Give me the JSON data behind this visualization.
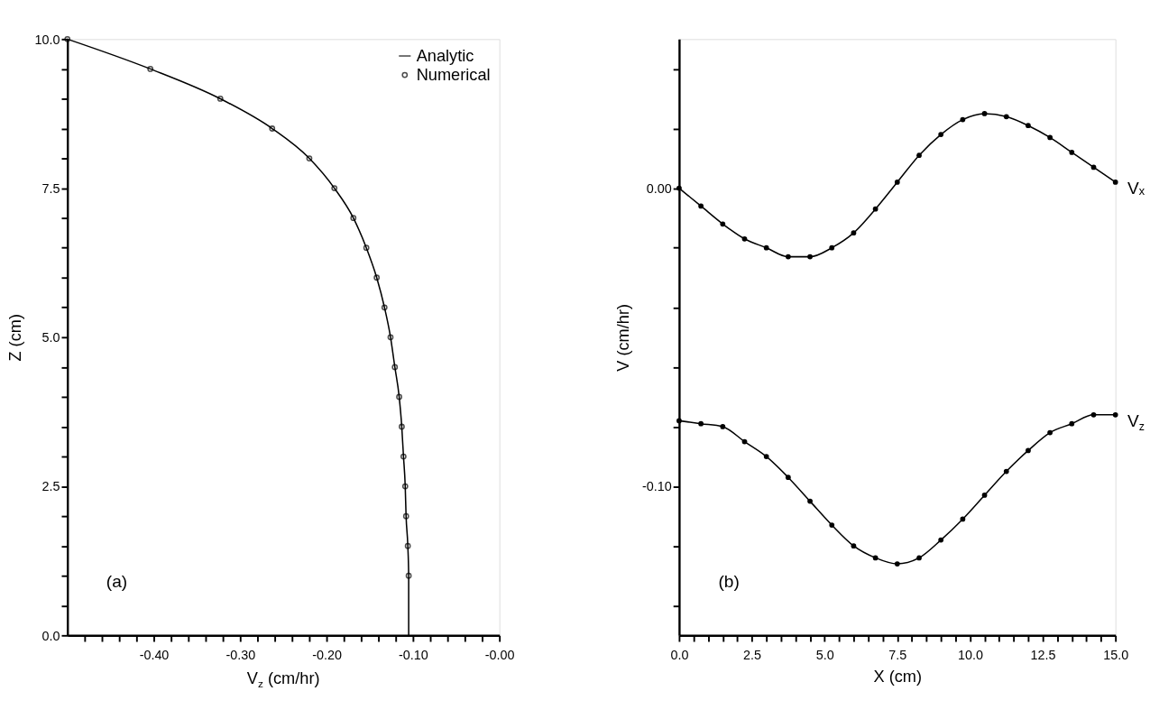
{
  "chart_data": [
    {
      "type": "line",
      "xlabel": "V$_{z}$ (cm/hr)",
      "ylabel": "Z (cm)",
      "xlim": [
        -0.5,
        0.0
      ],
      "ylim": [
        0,
        10
      ],
      "xticks": [
        {
          "value": -0.48,
          "label": null
        },
        {
          "value": -0.46,
          "label": null
        },
        {
          "value": -0.44,
          "label": null
        },
        {
          "value": -0.42,
          "label": null
        },
        {
          "value": -0.4,
          "label": "-0.40"
        },
        {
          "value": -0.38,
          "label": null
        },
        {
          "value": -0.36,
          "label": null
        },
        {
          "value": -0.34,
          "label": null
        },
        {
          "value": -0.32,
          "label": null
        },
        {
          "value": -0.3,
          "label": "-0.30"
        },
        {
          "value": -0.28,
          "label": null
        },
        {
          "value": -0.26,
          "label": null
        },
        {
          "value": -0.24,
          "label": null
        },
        {
          "value": -0.22,
          "label": null
        },
        {
          "value": -0.2,
          "label": "-0.20"
        },
        {
          "value": -0.18,
          "label": null
        },
        {
          "value": -0.16,
          "label": null
        },
        {
          "value": -0.14,
          "label": null
        },
        {
          "value": -0.12,
          "label": null
        },
        {
          "value": -0.1,
          "label": "-0.10"
        },
        {
          "value": -0.08,
          "label": null
        },
        {
          "value": -0.06,
          "label": null
        },
        {
          "value": -0.04,
          "label": null
        },
        {
          "value": -0.02,
          "label": null
        },
        {
          "value": 0.0,
          "label": "-0.00"
        }
      ],
      "yticks": [
        {
          "value": 0,
          "label": "0.0"
        },
        {
          "value": 0.5,
          "label": null
        },
        {
          "value": 1,
          "label": null
        },
        {
          "value": 1.5,
          "label": null
        },
        {
          "value": 2,
          "label": null
        },
        2.5,
        {
          "value": 3,
          "label": null
        },
        {
          "value": 3.5,
          "label": null
        },
        {
          "value": 4,
          "label": null
        },
        {
          "value": 4.5,
          "label": null
        },
        {
          "value": 5,
          "label": "5.0"
        },
        {
          "value": 5.5,
          "label": null
        },
        {
          "value": 6,
          "label": null
        },
        {
          "value": 6.5,
          "label": null
        },
        {
          "value": 7,
          "label": null
        },
        7.5,
        {
          "value": 8,
          "label": null
        },
        {
          "value": 8.5,
          "label": null
        },
        {
          "value": 9,
          "label": null
        },
        {
          "value": 9.5,
          "label": null
        },
        {
          "value": 10,
          "label": "10.0"
        }
      ],
      "legend": "top right",
      "annotations": [
        "(a)"
      ],
      "series": [
        {
          "name": "Analytic",
          "type": "line",
          "color": "#000000",
          "marker": "none",
          "x": [
            -0.5,
            -0.404,
            -0.323,
            -0.263,
            -0.22,
            -0.191,
            -0.169,
            -0.154,
            -0.142,
            -0.133,
            -0.126,
            -0.121,
            -0.116,
            -0.113,
            -0.111,
            -0.109,
            -0.108,
            -0.106,
            -0.105,
            -0.105
          ],
          "values": [
            10,
            9.5,
            9,
            8.5,
            8,
            7.5,
            7,
            6.5,
            6,
            5.5,
            5,
            4.5,
            4,
            3.5,
            3,
            2.5,
            2,
            1.5,
            1,
            0
          ]
        },
        {
          "name": "Numerical",
          "type": "scatter",
          "color": "#000000",
          "marker": "circle",
          "x": [
            -0.5,
            -0.404,
            -0.323,
            -0.263,
            -0.22,
            -0.191,
            -0.169,
            -0.154,
            -0.142,
            -0.133,
            -0.126,
            -0.121,
            -0.116,
            -0.113,
            -0.111,
            -0.109,
            -0.108,
            -0.106,
            -0.105
          ],
          "values": [
            10,
            9.5,
            9,
            8.5,
            8,
            7.5,
            7,
            6.5,
            6,
            5.5,
            5,
            4.5,
            4,
            3.5,
            3,
            2.5,
            2,
            1.5,
            1
          ]
        }
      ]
    },
    {
      "type": "line",
      "xlabel": "X (cm)",
      "ylabel": "V (cm/hr)",
      "xlim": [
        0,
        15
      ],
      "ylim": [
        -0.15,
        0.05
      ],
      "xticks": [
        {
          "value": 0,
          "label": "0.0"
        },
        {
          "value": 0.5,
          "label": null
        },
        {
          "value": 1,
          "label": null
        },
        {
          "value": 1.5,
          "label": null
        },
        {
          "value": 2,
          "label": null
        },
        2.5,
        {
          "value": 3,
          "label": null
        },
        {
          "value": 3.5,
          "label": null
        },
        {
          "value": 4,
          "label": null
        },
        {
          "value": 4.5,
          "label": null
        },
        {
          "value": 5,
          "label": "5.0"
        },
        {
          "value": 5.5,
          "label": null
        },
        {
          "value": 6,
          "label": null
        },
        {
          "value": 6.5,
          "label": null
        },
        {
          "value": 7,
          "label": null
        },
        7.5,
        {
          "value": 8,
          "label": null
        },
        {
          "value": 8.5,
          "label": null
        },
        {
          "value": 9,
          "label": null
        },
        {
          "value": 9.5,
          "label": null
        },
        {
          "value": 10,
          "label": "10.0"
        },
        {
          "value": 10.5,
          "label": null
        },
        {
          "value": 11,
          "label": null
        },
        {
          "value": 11.5,
          "label": null
        },
        {
          "value": 12,
          "label": null
        },
        12.5,
        {
          "value": 13,
          "label": null
        },
        {
          "value": 13.5,
          "label": null
        },
        {
          "value": 14,
          "label": null
        },
        {
          "value": 14.5,
          "label": null
        },
        {
          "value": 15,
          "label": "15.0"
        }
      ],
      "yticks": [
        {
          "value": -0.14,
          "label": null
        },
        {
          "value": -0.12,
          "label": null
        },
        {
          "value": -0.1,
          "label": "-0.10"
        },
        {
          "value": -0.08,
          "label": null
        },
        {
          "value": -0.06,
          "label": null
        },
        {
          "value": -0.04,
          "label": null
        },
        {
          "value": -0.02,
          "label": null
        },
        {
          "value": 0.0,
          "label": "0.00"
        },
        {
          "value": 0.02,
          "label": null
        },
        {
          "value": 0.04,
          "label": null
        }
      ],
      "marker": "circle",
      "line_style": "solid",
      "annotations": [
        "(b)"
      ],
      "x": [
        0,
        0.75,
        1.5,
        2.25,
        3,
        3.75,
        4.5,
        5.25,
        6,
        6.75,
        7.5,
        8.25,
        9,
        9.75,
        10.5,
        11.25,
        12,
        12.75,
        13.5,
        14.25,
        15
      ],
      "series": [
        {
          "name": "Vₓ",
          "color": "#000000",
          "values": [
            0,
            -0.006,
            -0.012,
            -0.017,
            -0.02,
            -0.023,
            -0.023,
            -0.02,
            -0.015,
            -0.007,
            0.002,
            0.011,
            0.018,
            0.023,
            0.025,
            0.024,
            0.021,
            0.017,
            0.012,
            0.007,
            0.002
          ]
        },
        {
          "name": "V$_{z}$",
          "color": "#000000",
          "values": [
            -0.078,
            -0.079,
            -0.08,
            -0.085,
            -0.09,
            -0.097,
            -0.105,
            -0.113,
            -0.12,
            -0.124,
            -0.126,
            -0.124,
            -0.118,
            -0.111,
            -0.103,
            -0.095,
            -0.088,
            -0.082,
            -0.079,
            -0.076,
            -0.076
          ]
        }
      ]
    }
  ]
}
